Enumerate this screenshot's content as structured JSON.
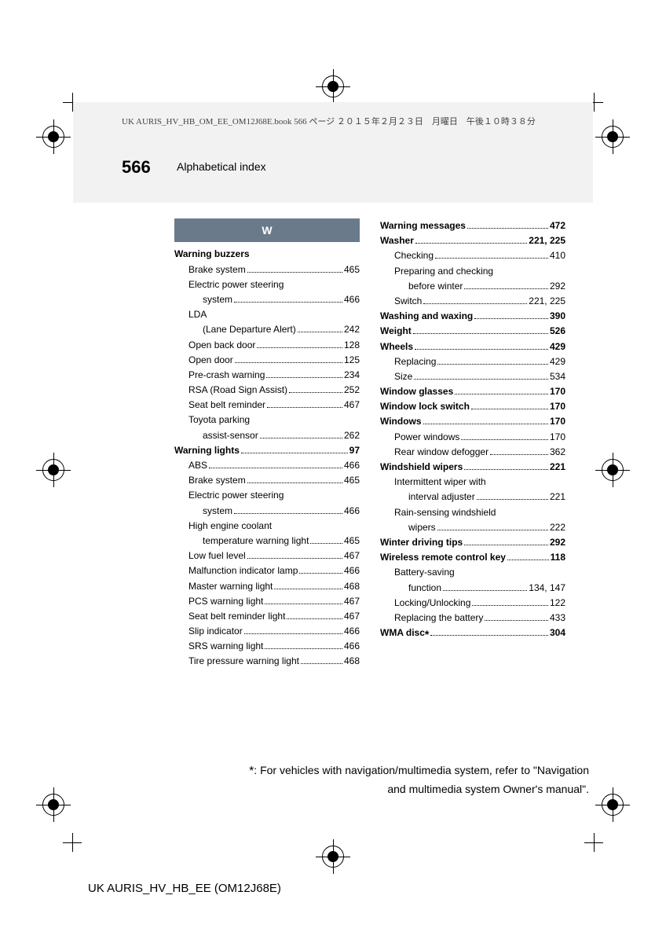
{
  "meta": {
    "book_line": "UK AURIS_HV_HB_OM_EE_OM12J68E.book  566 ページ  ２０１５年２月２３日　月曜日　午後１０時３８分",
    "page_number": "566",
    "section_title": "Alphabetical index",
    "footer_code": "UK AURIS_HV_HB_EE (OM12J68E)",
    "footnote_a": "*: For vehicles with navigation/multimedia system, refer to \"Navigation",
    "footnote_b": "and multimedia system Owner's manual\"."
  },
  "letter_header": "W",
  "left": [
    {
      "t": "bold",
      "label": "Warning buzzers",
      "page": ""
    },
    {
      "t": "sub",
      "label": "Brake system",
      "page": "465"
    },
    {
      "t": "sub",
      "label": "Electric power steering",
      "page": ""
    },
    {
      "t": "sub2",
      "label": "system",
      "page": "466"
    },
    {
      "t": "sub",
      "label": "LDA",
      "page": ""
    },
    {
      "t": "sub2",
      "label": "(Lane Departure Alert)",
      "page": "242"
    },
    {
      "t": "sub",
      "label": "Open back door",
      "page": "128"
    },
    {
      "t": "sub",
      "label": "Open door",
      "page": "125"
    },
    {
      "t": "sub",
      "label": "Pre-crash warning",
      "page": "234"
    },
    {
      "t": "sub",
      "label": "RSA (Road Sign Assist)",
      "page": "252"
    },
    {
      "t": "sub",
      "label": "Seat belt reminder",
      "page": "467"
    },
    {
      "t": "sub",
      "label": "Toyota parking",
      "page": ""
    },
    {
      "t": "sub2",
      "label": "assist-sensor",
      "page": "262"
    },
    {
      "t": "bold",
      "label": "Warning lights",
      "page": "97"
    },
    {
      "t": "sub",
      "label": "ABS",
      "page": "466"
    },
    {
      "t": "sub",
      "label": "Brake system",
      "page": "465"
    },
    {
      "t": "sub",
      "label": "Electric power steering",
      "page": ""
    },
    {
      "t": "sub2",
      "label": "system",
      "page": "466"
    },
    {
      "t": "sub",
      "label": "High engine coolant",
      "page": ""
    },
    {
      "t": "sub2",
      "label": "temperature warning light",
      "page": "465"
    },
    {
      "t": "sub",
      "label": "Low fuel level",
      "page": "467"
    },
    {
      "t": "sub",
      "label": "Malfunction indicator lamp",
      "page": "466"
    },
    {
      "t": "sub",
      "label": "Master warning light",
      "page": "468"
    },
    {
      "t": "sub",
      "label": "PCS warning light",
      "page": "467"
    },
    {
      "t": "sub",
      "label": "Seat belt reminder light",
      "page": "467"
    },
    {
      "t": "sub",
      "label": "Slip indicator",
      "page": "466"
    },
    {
      "t": "sub",
      "label": "SRS warning light",
      "page": "466"
    },
    {
      "t": "sub",
      "label": "Tire pressure warning light",
      "page": "468"
    }
  ],
  "right": [
    {
      "t": "bold",
      "label": "Warning messages",
      "page": "472"
    },
    {
      "t": "bold",
      "label": "Washer",
      "page": "221, 225"
    },
    {
      "t": "sub",
      "label": "Checking",
      "page": "410"
    },
    {
      "t": "sub",
      "label": "Preparing and checking",
      "page": ""
    },
    {
      "t": "sub2",
      "label": "before winter",
      "page": "292"
    },
    {
      "t": "sub",
      "label": "Switch",
      "page": "221, 225"
    },
    {
      "t": "bold",
      "label": "Washing and waxing",
      "page": "390"
    },
    {
      "t": "bold",
      "label": "Weight",
      "page": "526"
    },
    {
      "t": "bold",
      "label": "Wheels",
      "page": "429"
    },
    {
      "t": "sub",
      "label": "Replacing",
      "page": "429"
    },
    {
      "t": "sub",
      "label": "Size",
      "page": "534"
    },
    {
      "t": "bold",
      "label": "Window glasses",
      "page": "170"
    },
    {
      "t": "bold",
      "label": "Window lock switch",
      "page": "170"
    },
    {
      "t": "bold",
      "label": "Windows",
      "page": "170"
    },
    {
      "t": "sub",
      "label": "Power windows",
      "page": "170"
    },
    {
      "t": "sub",
      "label": "Rear window defogger",
      "page": "362"
    },
    {
      "t": "bold",
      "label": "Windshield wipers",
      "page": "221"
    },
    {
      "t": "sub",
      "label": "Intermittent wiper with",
      "page": ""
    },
    {
      "t": "sub2",
      "label": "interval adjuster",
      "page": "221"
    },
    {
      "t": "sub",
      "label": "Rain-sensing windshield",
      "page": ""
    },
    {
      "t": "sub2",
      "label": "wipers",
      "page": "222"
    },
    {
      "t": "bold",
      "label": "Winter driving tips",
      "page": "292"
    },
    {
      "t": "bold",
      "label": "Wireless remote control key",
      "page": "118"
    },
    {
      "t": "sub",
      "label": "Battery-saving",
      "page": ""
    },
    {
      "t": "sub2",
      "label": "function",
      "page": "134, 147"
    },
    {
      "t": "sub",
      "label": "Locking/Unlocking",
      "page": "122"
    },
    {
      "t": "sub",
      "label": "Replacing the battery",
      "page": "433"
    },
    {
      "t": "bold",
      "label": "WMA disc*",
      "page": "304",
      "star": true
    }
  ]
}
